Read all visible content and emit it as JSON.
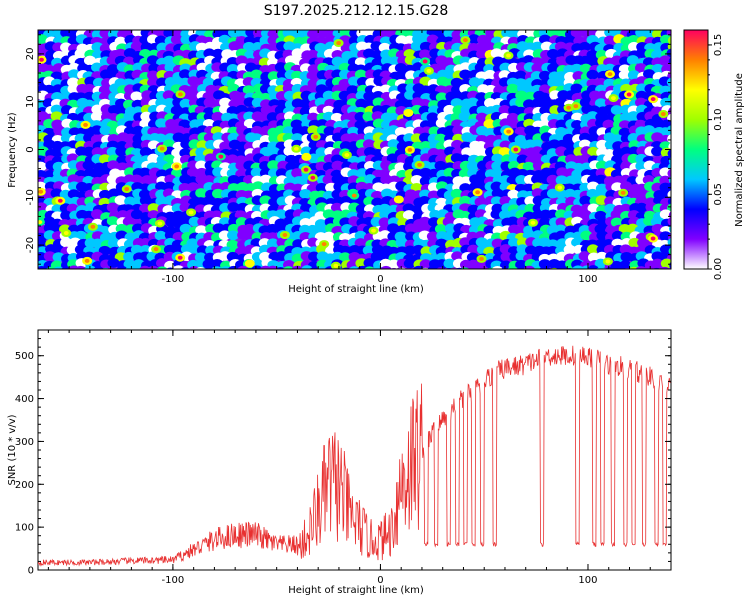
{
  "title": "S197.2025.212.12.15.G28",
  "chart_data": [
    {
      "type": "heatmap",
      "xlabel": "Height of straight line (km)",
      "ylabel": "Frequency (Hz)",
      "xlim": [
        -165,
        140
      ],
      "ylim": [
        -25,
        25
      ],
      "xticks": [
        -100,
        0,
        100
      ],
      "yticks": [
        -20,
        -10,
        0,
        10,
        20
      ],
      "colorbar": {
        "label": "Normalized spectral amplitude",
        "range": [
          0.0,
          0.16
        ],
        "ticks": [
          "0.00",
          "0.05",
          "0.10",
          "0.15"
        ],
        "tick_values": [
          0.0,
          0.05,
          0.1,
          0.15
        ],
        "colors": [
          "#ffffff",
          "#8000ff",
          "#0000ff",
          "#00c8ff",
          "#00ff80",
          "#a0ff00",
          "#ffff00",
          "#ff8000",
          "#ff0060"
        ]
      }
    },
    {
      "type": "line",
      "xlabel": "Height of straight line (km)",
      "ylabel": "SNR (10 * v/v)",
      "xlim": [
        -165,
        140
      ],
      "ylim": [
        0,
        560
      ],
      "xticks": [
        -100,
        0,
        100
      ],
      "yticks": [
        0,
        100,
        200,
        300,
        400,
        500
      ],
      "line_color": "#e83030",
      "series": [
        {
          "x": [
            -165,
            -140,
            -120,
            -100,
            -90,
            -80,
            -70,
            -60,
            -50,
            -40,
            -35,
            -30,
            -25,
            -20,
            -15,
            -10,
            -5,
            0,
            5,
            10,
            15,
            20,
            25,
            30,
            35,
            40,
            45,
            50,
            55,
            60,
            70,
            80,
            90,
            100,
            110,
            120,
            130,
            140
          ],
          "values": [
            15,
            15,
            18,
            20,
            40,
            60,
            70,
            70,
            50,
            50,
            80,
            140,
            200,
            200,
            130,
            100,
            70,
            70,
            90,
            200,
            250,
            280,
            320,
            350,
            380,
            400,
            420,
            440,
            460,
            470,
            480,
            500,
            500,
            500,
            480,
            470,
            450,
            430
          ]
        }
      ],
      "drops": {
        "baseline": 60,
        "x": [
          22,
          27,
          33,
          37,
          41,
          45,
          49,
          55,
          78,
          95,
          103,
          107,
          112,
          118,
          122,
          127,
          133,
          137
        ]
      }
    }
  ]
}
